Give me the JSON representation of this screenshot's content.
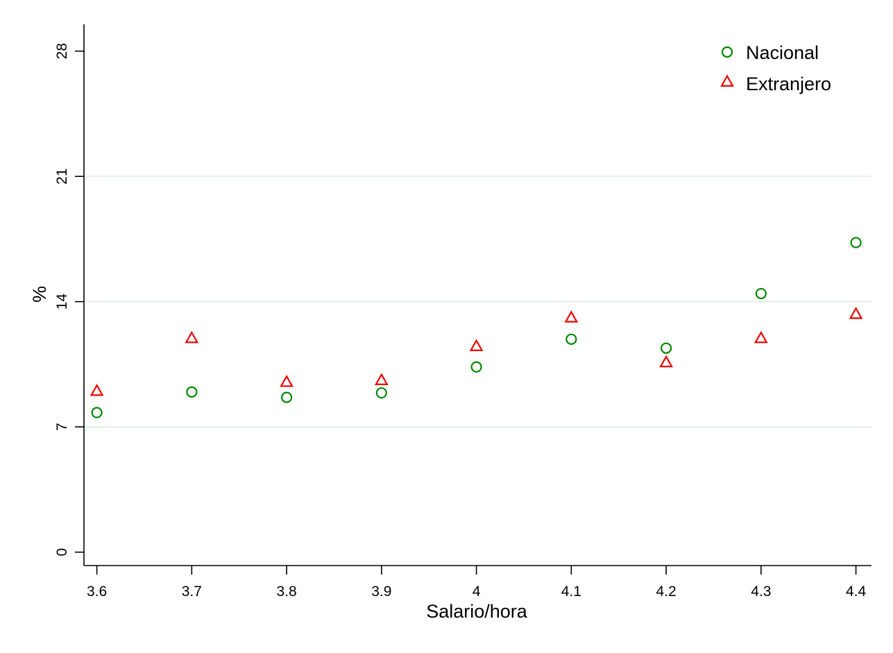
{
  "chart_data": {
    "type": "scatter",
    "xlabel": "Salario/hora",
    "ylabel": "%",
    "x": [
      3.6,
      3.7,
      3.8,
      3.9,
      4.0,
      4.1,
      4.2,
      4.3,
      4.4
    ],
    "x_tick_labels": [
      "3.6",
      "3.7",
      "3.8",
      "3.9",
      "4",
      "4.1",
      "4.2",
      "4.3",
      "4.4"
    ],
    "y_ticks": [
      0,
      7,
      14,
      21,
      28
    ],
    "y_tick_labels": [
      "0",
      "7",
      "14",
      "21",
      "28"
    ],
    "xlim": [
      3.5864,
      4.4164
    ],
    "ylim": [
      -0.75,
      29.5
    ],
    "grid": "horizontal",
    "legend_position": "top-right",
    "series": [
      {
        "name": "Nacional",
        "marker": "circle",
        "color": "#008800",
        "values": [
          7.8,
          8.95,
          8.65,
          8.9,
          10.35,
          11.9,
          11.4,
          14.45,
          17.3
        ]
      },
      {
        "name": "Extranjero",
        "marker": "triangle",
        "color": "#ee0000",
        "values": [
          9.0,
          11.95,
          9.5,
          9.6,
          11.5,
          13.1,
          10.6,
          11.95,
          13.3
        ]
      }
    ]
  }
}
